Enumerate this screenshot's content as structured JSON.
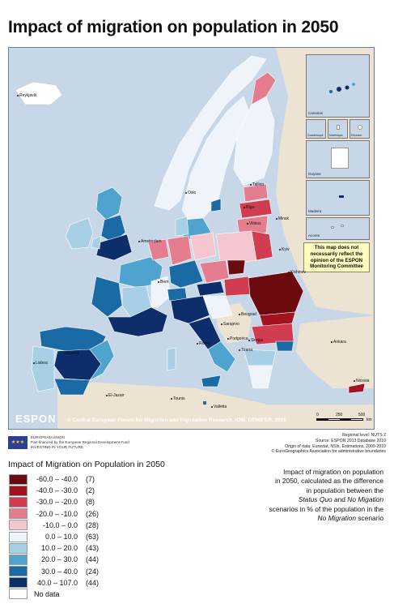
{
  "title": "Impact of migration on population in 2050",
  "map": {
    "colors": {
      "sea": "#c7d7e8",
      "non_espon": "#ece3d2",
      "border": "#ffffff"
    },
    "insets": [
      {
        "label": "Canarias"
      },
      {
        "label": "Guadeloupe"
      },
      {
        "label": "Martinique"
      },
      {
        "label": "Réunion"
      },
      {
        "label": "Guyane"
      },
      {
        "label": "Madeira"
      },
      {
        "label": "Acores"
      }
    ],
    "disclaimer": "This map does not necessarily reflect the opinion of the ESPON Monitoring Committee",
    "cities": [
      {
        "name": "Reykjavík"
      },
      {
        "name": "Oslo"
      },
      {
        "name": "Tallinn"
      },
      {
        "name": "Riga"
      },
      {
        "name": "Vilnius"
      },
      {
        "name": "Minsk"
      },
      {
        "name": "Kyiv"
      },
      {
        "name": "Kishinev"
      },
      {
        "name": "Amsterdam"
      },
      {
        "name": "Bern"
      },
      {
        "name": "Lisboa"
      },
      {
        "name": "Madrid"
      },
      {
        "name": "Roma"
      },
      {
        "name": "Beograd"
      },
      {
        "name": "Sarajevo"
      },
      {
        "name": "Podgorica"
      },
      {
        "name": "Skopje"
      },
      {
        "name": "Tirana"
      },
      {
        "name": "Ankara"
      },
      {
        "name": "Nicosia"
      },
      {
        "name": "El-Jazair"
      },
      {
        "name": "Tounis"
      },
      {
        "name": "Valletta"
      }
    ],
    "logo": "ESPON",
    "copyright": "© Central European Forum for Migration and Population Research, IOM, DEMIFER, 2010",
    "scale": {
      "labels": [
        "0",
        "250",
        "500"
      ],
      "unit": "km"
    }
  },
  "eu": {
    "lines": [
      "EUROPEAN UNION",
      "Part-financed by the European Regional Development Fund",
      "INVESTING IN YOUR FUTURE"
    ]
  },
  "sources": {
    "lines": [
      "Regional level: NUTS 2",
      "Source: ESPON 2013 Database 2010",
      "Origin of data: Eurostat, NSIs, Estimations, 2009-2010",
      "© EuroGeographics Association for administrative boundaries"
    ]
  },
  "legend": {
    "title": "Impact of Migration on Population in 2050",
    "classes": [
      {
        "label": "-60.0 – -40.0",
        "count": "(7)",
        "color": "#6b0b0f"
      },
      {
        "label": "-40.0 – -30.0",
        "count": "(2)",
        "color": "#a3121e"
      },
      {
        "label": "-30.0 – -20.0",
        "count": "(8)",
        "color": "#d03c50"
      },
      {
        "label": "-20.0 – -10.0",
        "count": "(26)",
        "color": "#e47d8e"
      },
      {
        "label": "-10.0 – 0.0",
        "count": "(28)",
        "color": "#f6c6d0"
      },
      {
        "label": "0.0 – 10.0",
        "count": "(63)",
        "color": "#eef4fa"
      },
      {
        "label": "10.0 – 20.0",
        "count": "(43)",
        "color": "#a7d0e7"
      },
      {
        "label": "20.0 – 30.0",
        "count": "(44)",
        "color": "#4ea4cf"
      },
      {
        "label": "30.0 – 40.0",
        "count": "(24)",
        "color": "#1a6aa6"
      },
      {
        "label": "40.0 – 107.0",
        "count": "(44)",
        "color": "#0d2e6b"
      },
      {
        "label": "No data",
        "count": "",
        "color": "#ffffff"
      }
    ]
  },
  "description": {
    "line1": "Impact of migration on population",
    "line2": "in 2050, calculated as the difference",
    "line3": "in population between the",
    "status_quo": "Status Quo",
    "and": " and ",
    "no_migration": "No Migation",
    "line5": "scenarios in % of the population in the",
    "no_migration2": "No Migration",
    "line6_end": " scenario"
  }
}
